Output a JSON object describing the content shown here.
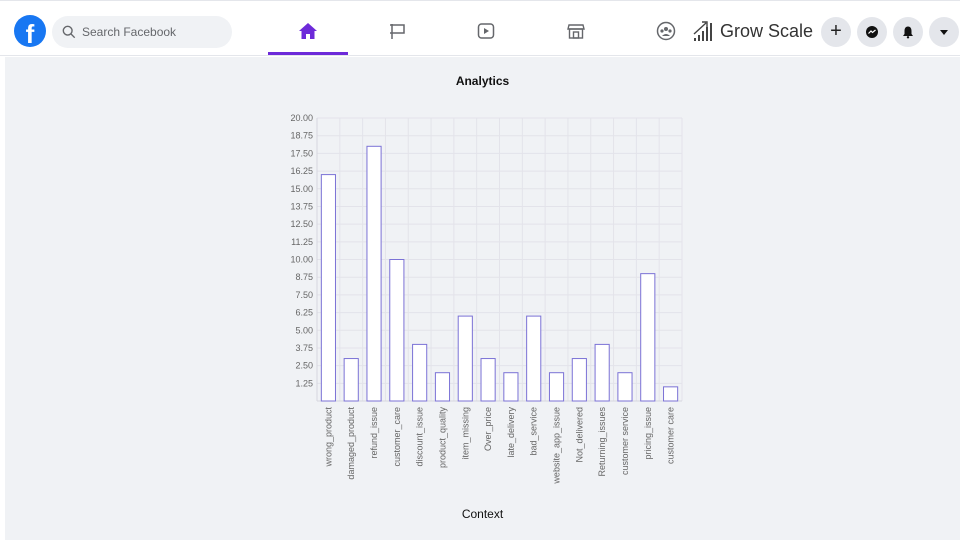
{
  "topbar": {
    "logo": "f",
    "search_placeholder": "Search Facebook",
    "brand_name": "Grow Scale",
    "create_label": "+"
  },
  "colors": {
    "accent": "#6d2ad9",
    "facebook_blue": "#1877f2",
    "bar_stroke": "#7b72d6",
    "bar_fill": "#ffffff",
    "page_background": "#f0f2f5"
  },
  "chart_data": {
    "type": "bar",
    "title": "Analytics",
    "xlabel": "Context",
    "ylabel": "",
    "ylim": [
      0,
      20
    ],
    "yticks": [
      "1.25",
      "2.50",
      "3.75",
      "5.00",
      "6.25",
      "7.50",
      "8.75",
      "10.00",
      "11.25",
      "12.50",
      "13.75",
      "15.00",
      "16.25",
      "17.50",
      "18.75",
      "20.00"
    ],
    "categories": [
      "wrong_product",
      "damaged_product",
      "refund_issue",
      "customer_care",
      "discount_issue",
      "product_quality",
      "item_missing",
      "Over_price",
      "late_delivery",
      "bad_service",
      "website_app_issue",
      "Not_delivered",
      "Returning_issues",
      "customer service",
      "pricing_issue",
      "customer care"
    ],
    "values": [
      16,
      3,
      18,
      10,
      4,
      2,
      6,
      3,
      2,
      6,
      2,
      3,
      4,
      2,
      9,
      1
    ],
    "grid": true,
    "legend": "none"
  }
}
